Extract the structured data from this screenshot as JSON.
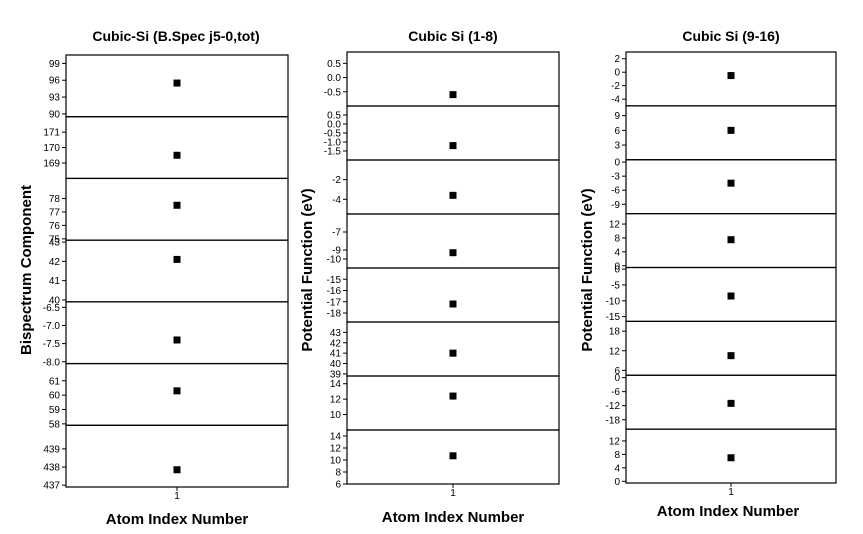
{
  "chart_data": [
    {
      "type": "scatter",
      "title": "Cubic-Si (B.Spec j5-0,tot)",
      "xlabel": "Atom Index Number",
      "ylabel": "Bispectrum Component",
      "x_ticks": [
        "1"
      ],
      "panels": [
        {
          "ylim": [
            89.5,
            100.5
          ],
          "ticks": [
            "99",
            "96",
            "93",
            "90"
          ],
          "tick_values": [
            99,
            96,
            93,
            90
          ],
          "points": [
            {
              "x": 1,
              "y": 95.5
            }
          ]
        },
        {
          "ylim": [
            168.0,
            172.0
          ],
          "ticks": [
            "171",
            "170",
            "169"
          ],
          "tick_values": [
            171,
            170,
            169
          ],
          "points": [
            {
              "x": 1,
              "y": 169.5
            }
          ]
        },
        {
          "ylim": [
            74.9,
            79.5
          ],
          "ticks": [
            "78",
            "77",
            "76",
            "75"
          ],
          "tick_values": [
            78,
            77,
            76,
            75
          ],
          "points": [
            {
              "x": 1,
              "y": 77.5
            }
          ]
        },
        {
          "ylim": [
            39.9,
            43.1
          ],
          "ticks": [
            "43",
            "42",
            "41",
            "40"
          ],
          "tick_values": [
            43,
            42,
            41,
            40
          ],
          "points": [
            {
              "x": 1,
              "y": 42.1
            }
          ]
        },
        {
          "ylim": [
            -8.05,
            -6.35
          ],
          "ticks": [
            "-6.5",
            "-7.0",
            "-7.5",
            "-8.0"
          ],
          "tick_values": [
            -6.5,
            -7.0,
            -7.5,
            -8.0
          ],
          "points": [
            {
              "x": 1,
              "y": -7.4
            }
          ]
        },
        {
          "ylim": [
            57.9,
            62.2
          ],
          "ticks": [
            "61",
            "60",
            "59",
            "58"
          ],
          "tick_values": [
            61,
            60,
            59,
            58
          ],
          "points": [
            {
              "x": 1,
              "y": 60.3
            }
          ]
        },
        {
          "ylim": [
            436.9,
            440.3
          ],
          "ticks": [
            "439",
            "438",
            "437"
          ],
          "tick_values": [
            439,
            438,
            437
          ],
          "points": [
            {
              "x": 1,
              "y": 437.85
            }
          ]
        }
      ]
    },
    {
      "type": "scatter",
      "title": "Cubic Si (1-8)",
      "xlabel": "Atom Index Number",
      "ylabel": "Potential Function (eV)",
      "x_ticks": [
        "1"
      ],
      "panels": [
        {
          "ylim": [
            -1.0,
            0.9
          ],
          "ticks": [
            "0.5",
            "0.0",
            "-0.5"
          ],
          "tick_values": [
            0.5,
            0.0,
            -0.5
          ],
          "points": [
            {
              "x": 1,
              "y": -0.6
            }
          ]
        },
        {
          "ylim": [
            -2.0,
            1.0
          ],
          "ticks": [
            "0.5",
            "0.0",
            "-0.5",
            "-1.0",
            "-1.5"
          ],
          "tick_values": [
            0.5,
            0.0,
            -0.5,
            -1.0,
            -1.5
          ],
          "points": [
            {
              "x": 1,
              "y": -1.2
            }
          ]
        },
        {
          "ylim": [
            -5.5,
            0.0
          ],
          "ticks": [
            "-2",
            "-4"
          ],
          "tick_values": [
            -2,
            -4
          ],
          "points": [
            {
              "x": 1,
              "y": -3.6
            }
          ]
        },
        {
          "ylim": [
            -11.0,
            -5.0
          ],
          "ticks": [
            "-7",
            "-9",
            "-10"
          ],
          "tick_values": [
            -7,
            -9,
            -10
          ],
          "points": [
            {
              "x": 1,
              "y": -9.3
            }
          ]
        },
        {
          "ylim": [
            -18.8,
            -14.0
          ],
          "ticks": [
            "-15",
            "-16",
            "-17",
            "-18"
          ],
          "tick_values": [
            -15,
            -16,
            -17,
            -18
          ],
          "points": [
            {
              "x": 1,
              "y": -17.2
            }
          ]
        },
        {
          "ylim": [
            38.8,
            44.0
          ],
          "ticks": [
            "43",
            "42",
            "41",
            "40",
            "39"
          ],
          "tick_values": [
            43,
            42,
            41,
            40,
            39
          ],
          "points": [
            {
              "x": 1,
              "y": 41.0
            }
          ]
        },
        {
          "ylim": [
            8.0,
            15.0
          ],
          "ticks": [
            "14",
            "12",
            "10"
          ],
          "tick_values": [
            14,
            12,
            10
          ],
          "points": [
            {
              "x": 1,
              "y": 12.4
            }
          ]
        },
        {
          "ylim": [
            6.0,
            15.0
          ],
          "ticks": [
            "14",
            "12",
            "10",
            "8",
            "6"
          ],
          "tick_values": [
            14,
            12,
            10,
            8,
            6
          ],
          "points": [
            {
              "x": 1,
              "y": 10.7
            }
          ]
        }
      ]
    },
    {
      "type": "scatter",
      "title": "Cubic Si (9-16)",
      "xlabel": "Atom Index Number",
      "ylabel": "Potential Function (eV)",
      "x_ticks": [
        "1"
      ],
      "panels": [
        {
          "ylim": [
            -5.0,
            3.0
          ],
          "ticks": [
            "2",
            "0",
            "-2",
            "-4"
          ],
          "tick_values": [
            2,
            0,
            -2,
            -4
          ],
          "points": [
            {
              "x": 1,
              "y": -0.5
            }
          ]
        },
        {
          "ylim": [
            0.0,
            11.0
          ],
          "ticks": [
            "9",
            "6",
            "3"
          ],
          "tick_values": [
            9,
            6,
            3
          ],
          "points": [
            {
              "x": 1,
              "y": 6.0
            }
          ]
        },
        {
          "ylim": [
            -11.0,
            0.5
          ],
          "ticks": [
            "0",
            "-3",
            "-6",
            "-9"
          ],
          "tick_values": [
            0,
            -3,
            -6,
            -9
          ],
          "points": [
            {
              "x": 1,
              "y": -4.5
            }
          ]
        },
        {
          "ylim": [
            -0.5,
            15.0
          ],
          "ticks": [
            "12",
            "8",
            "4",
            "0"
          ],
          "tick_values": [
            12,
            8,
            4,
            0
          ],
          "points": [
            {
              "x": 1,
              "y": 7.5
            }
          ]
        },
        {
          "ylim": [
            -16.5,
            0.5
          ],
          "ticks": [
            "0",
            "-5",
            "-10",
            "-15"
          ],
          "tick_values": [
            0,
            -5,
            -10,
            -15
          ],
          "points": [
            {
              "x": 1,
              "y": -8.5
            }
          ]
        },
        {
          "ylim": [
            4.5,
            21.0
          ],
          "ticks": [
            "18",
            "12",
            "6"
          ],
          "tick_values": [
            18,
            12,
            6
          ],
          "points": [
            {
              "x": 1,
              "y": 10.5
            }
          ]
        },
        {
          "ylim": [
            -22.0,
            1.0
          ],
          "ticks": [
            "0",
            "-6",
            "-12",
            "-18"
          ],
          "tick_values": [
            0,
            -6,
            -12,
            -18
          ],
          "points": [
            {
              "x": 1,
              "y": -11.0
            }
          ]
        },
        {
          "ylim": [
            -0.5,
            15.5
          ],
          "ticks": [
            "12",
            "8",
            "4",
            "0"
          ],
          "tick_values": [
            12,
            8,
            4,
            0
          ],
          "points": [
            {
              "x": 1,
              "y": 7.0
            }
          ]
        }
      ]
    }
  ]
}
